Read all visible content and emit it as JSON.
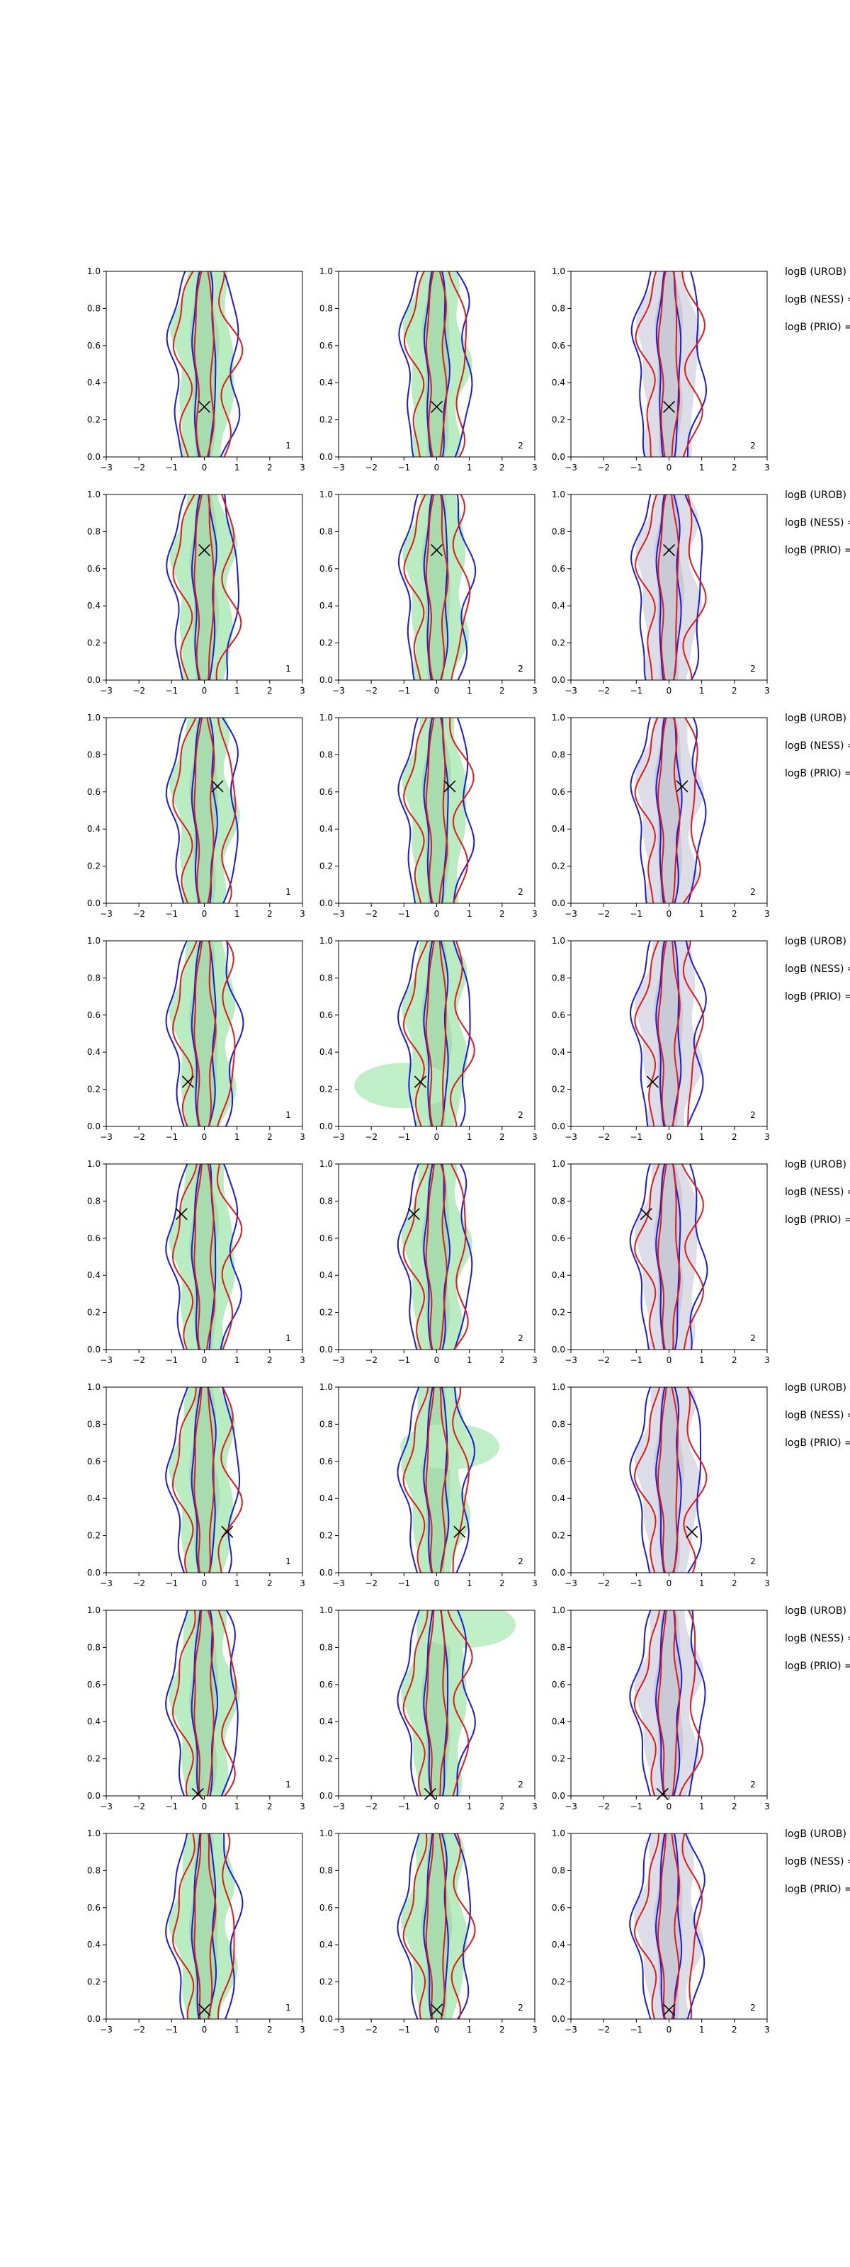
{
  "chart_data": {
    "type": "contour",
    "layout": "8 rows x 3 columns of contour panels with a text column on the right",
    "xlim": [
      -3,
      3
    ],
    "ylim": [
      0,
      1
    ],
    "xticks": [
      "−3",
      "−2",
      "−1",
      "0",
      "1",
      "2",
      "3"
    ],
    "yticks": [
      "0.0",
      "0.2",
      "0.4",
      "0.6",
      "0.8",
      "1.0"
    ],
    "grid": false,
    "series": [
      {
        "style": "filled contour",
        "color": "#b9ecc0"
      },
      {
        "style": "filled contour",
        "color": "#dcdde6"
      },
      {
        "style": "contour line",
        "color": "#1a1adb"
      },
      {
        "style": "contour line",
        "color": "#e01a1a"
      }
    ],
    "column_fill": [
      "green",
      "green",
      "gray"
    ],
    "panel_corner_labels": [
      "1",
      "2",
      "2"
    ],
    "side_labels": [
      "logB (UROB) =",
      "logB (NESS) =",
      "logB (PRIO) ="
    ],
    "markers": [
      {
        "row": 1,
        "x": 0.0,
        "y": 0.27
      },
      {
        "row": 2,
        "x": 0.0,
        "y": 0.7
      },
      {
        "row": 3,
        "x": 0.4,
        "y": 0.63
      },
      {
        "row": 4,
        "x": -0.5,
        "y": 0.24
      },
      {
        "row": 5,
        "x": -0.7,
        "y": 0.73
      },
      {
        "row": 6,
        "x": 0.7,
        "y": 0.22
      },
      {
        "row": 7,
        "x": -0.2,
        "y": 0.01
      },
      {
        "row": 8,
        "x": 0.0,
        "y": 0.05
      }
    ]
  }
}
